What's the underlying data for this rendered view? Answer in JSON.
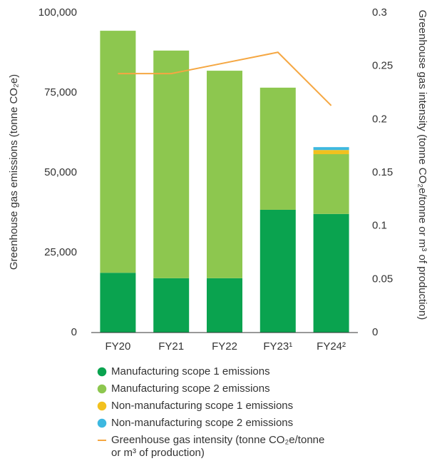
{
  "chart_data": {
    "type": "bar",
    "categories": [
      "FY20",
      "FY21",
      "FY22",
      "FY23¹",
      "FY24²"
    ],
    "stacked": true,
    "series": [
      {
        "name": "Manufacturing scope 1 emissions",
        "color": "#0aa34f",
        "values": [
          18700,
          17000,
          17000,
          38400,
          37100
        ]
      },
      {
        "name": "Manufacturing scope 2 emissions",
        "color": "#8dc74f",
        "values": [
          75700,
          71200,
          64900,
          38200,
          18700
        ]
      },
      {
        "name": "Non-manufacturing scope 1 emissions",
        "color": "#f2c11e",
        "values": [
          0,
          0,
          0,
          0,
          1300
        ]
      },
      {
        "name": "Non-manufacturing scope 2 emissions",
        "color": "#3db8e0",
        "values": [
          0,
          0,
          0,
          0,
          900
        ]
      },
      {
        "name": "Greenhouse gas intensity (tonne CO₂e/tonne or m³ of production)",
        "color": "#f5a742",
        "type": "line",
        "axis": "y2",
        "values": [
          0.243,
          0.243,
          0.253,
          0.263,
          0.213
        ]
      }
    ],
    "y_label": "Greenhouse gas emissions (tonne CO₂e)",
    "y2_label": "Greenhouse gas intensity (tonne CO₂e/tonne or m³ of production)",
    "ylim": [
      0,
      100000
    ],
    "yticks": [
      0,
      {
        "value": 25000,
        "label": "25,000"
      },
      {
        "value": 50000,
        "label": "50,000"
      },
      {
        "value": 75000,
        "label": "75,000"
      },
      {
        "value": 100000,
        "label": "100,000"
      }
    ],
    "y2lim": [
      0,
      0.3
    ],
    "y2ticks": [
      0,
      0.05,
      0.1,
      0.15,
      0.2,
      0.25,
      0.3
    ],
    "legend": "bottom"
  }
}
